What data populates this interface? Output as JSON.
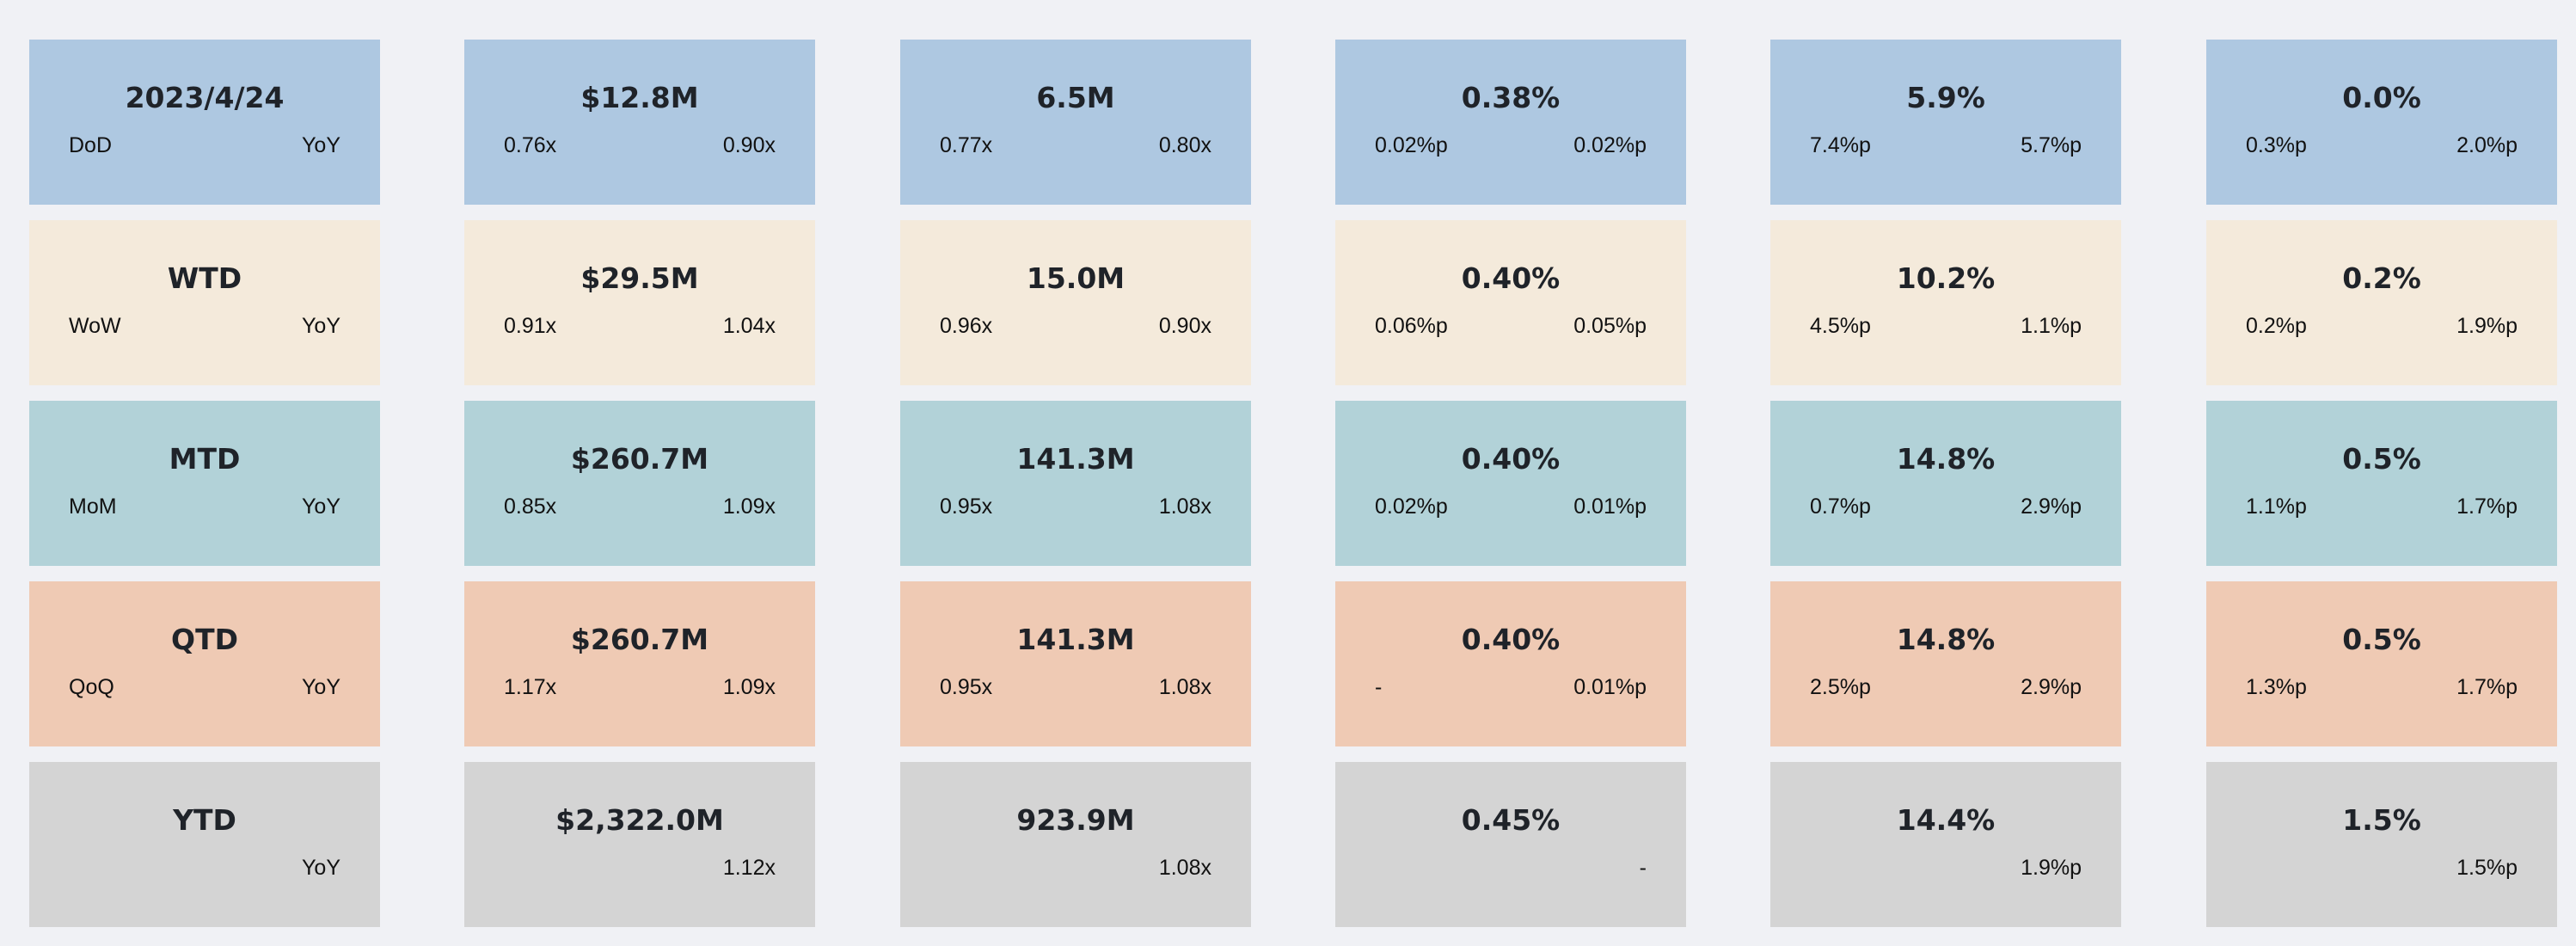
{
  "colors": {
    "page_background": "#f0f1f5",
    "day": "#aec8e1",
    "week": "#f4eadb",
    "month": "#b2d2d8",
    "quarter": "#efcab4",
    "year": "#d4d4d4"
  },
  "rows": [
    {
      "name": "day",
      "color": "#aec8e1",
      "cards": [
        {
          "main": "2023/4/24",
          "left": "DoD",
          "right": "YoY"
        },
        {
          "main": "$12.8M",
          "left": "0.76x",
          "right": "0.90x"
        },
        {
          "main": "6.5M",
          "left": "0.77x",
          "right": "0.80x"
        },
        {
          "main": "0.38%",
          "left": "0.02%p",
          "right": "0.02%p"
        },
        {
          "main": "5.9%",
          "left": "7.4%p",
          "right": "5.7%p"
        },
        {
          "main": "0.0%",
          "left": "0.3%p",
          "right": "2.0%p"
        }
      ]
    },
    {
      "name": "week",
      "color": "#f4eadb",
      "cards": [
        {
          "main": "WTD",
          "left": "WoW",
          "right": "YoY"
        },
        {
          "main": "$29.5M",
          "left": "0.91x",
          "right": "1.04x"
        },
        {
          "main": "15.0M",
          "left": "0.96x",
          "right": "0.90x"
        },
        {
          "main": "0.40%",
          "left": "0.06%p",
          "right": "0.05%p"
        },
        {
          "main": "10.2%",
          "left": "4.5%p",
          "right": "1.1%p"
        },
        {
          "main": "0.2%",
          "left": "0.2%p",
          "right": "1.9%p"
        }
      ]
    },
    {
      "name": "month",
      "color": "#b2d2d8",
      "cards": [
        {
          "main": "MTD",
          "left": "MoM",
          "right": "YoY"
        },
        {
          "main": "$260.7M",
          "left": "0.85x",
          "right": "1.09x"
        },
        {
          "main": "141.3M",
          "left": "0.95x",
          "right": "1.08x"
        },
        {
          "main": "0.40%",
          "left": "0.02%p",
          "right": "0.01%p"
        },
        {
          "main": "14.8%",
          "left": "0.7%p",
          "right": "2.9%p"
        },
        {
          "main": "0.5%",
          "left": "1.1%p",
          "right": "1.7%p"
        }
      ]
    },
    {
      "name": "quarter",
      "color": "#efcab4",
      "cards": [
        {
          "main": "QTD",
          "left": "QoQ",
          "right": "YoY"
        },
        {
          "main": "$260.7M",
          "left": "1.17x",
          "right": "1.09x"
        },
        {
          "main": "141.3M",
          "left": "0.95x",
          "right": "1.08x"
        },
        {
          "main": "0.40%",
          "left": "-",
          "right": "0.01%p"
        },
        {
          "main": "14.8%",
          "left": "2.5%p",
          "right": "2.9%p"
        },
        {
          "main": "0.5%",
          "left": "1.3%p",
          "right": "1.7%p"
        }
      ]
    },
    {
      "name": "year",
      "color": "#d4d4d4",
      "cards": [
        {
          "main": "YTD",
          "left": "",
          "right": "YoY"
        },
        {
          "main": "$2,322.0M",
          "left": "",
          "right": "1.12x"
        },
        {
          "main": "923.9M",
          "left": "",
          "right": "1.08x"
        },
        {
          "main": "0.45%",
          "left": "",
          "right": "-"
        },
        {
          "main": "14.4%",
          "left": "",
          "right": "1.9%p"
        },
        {
          "main": "1.5%",
          "left": "",
          "right": "1.5%p"
        }
      ]
    }
  ]
}
